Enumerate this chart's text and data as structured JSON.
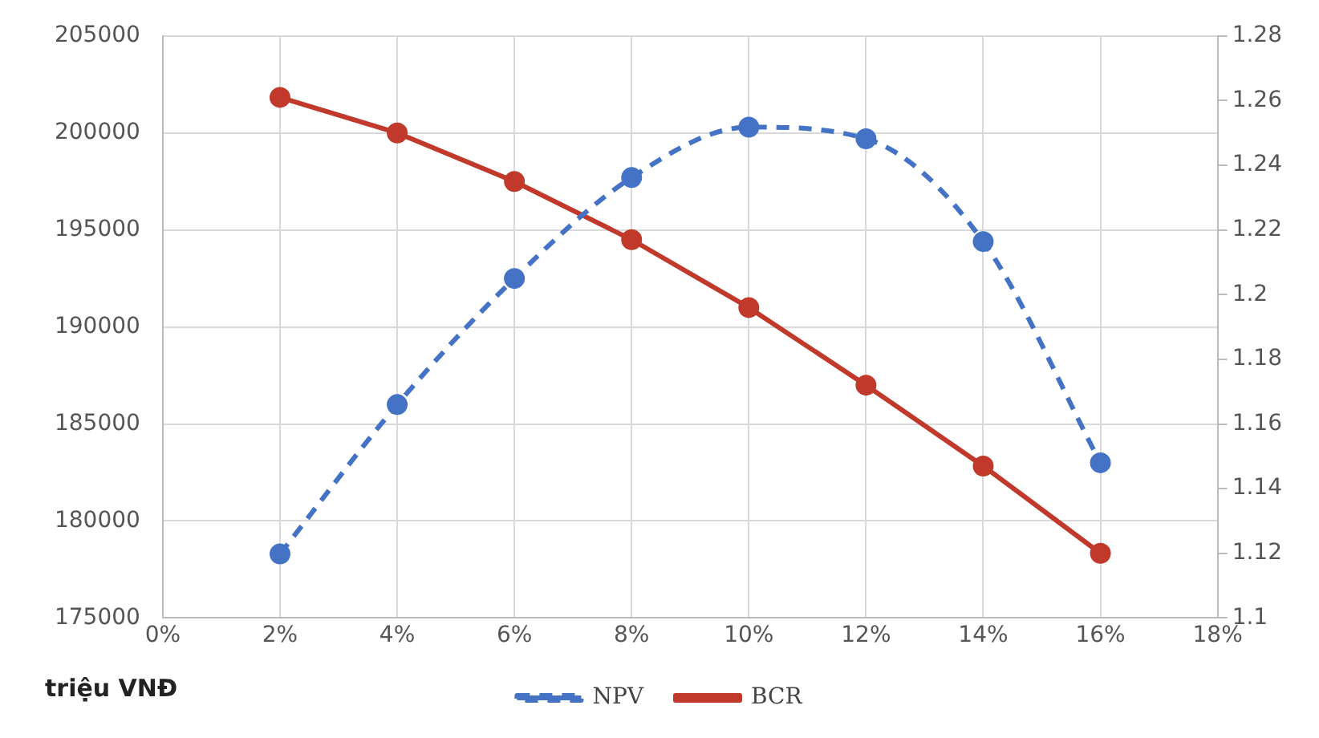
{
  "chart_data": {
    "type": "line",
    "ylabel": "triệu VNĐ",
    "x": [
      2,
      4,
      6,
      8,
      10,
      12,
      14,
      16
    ],
    "series": [
      {
        "name": "NPV",
        "color": "#4472c4",
        "values": [
          178300,
          186000,
          192500,
          197700,
          200300,
          199700,
          194400,
          183000
        ],
        "line_style": "dashed"
      },
      {
        "name": "BCR",
        "color": "#c0392b",
        "values": [
          1.261,
          1.25,
          1.235,
          1.217,
          1.196,
          1.172,
          1.147,
          1.12
        ],
        "axis": "y2",
        "line_style": "solid"
      }
    ],
    "xlim": [
      0,
      18
    ],
    "xticks": [
      {
        "value": 0,
        "label": "0%"
      },
      {
        "value": 2,
        "label": "2%"
      },
      {
        "value": 4,
        "label": "4%"
      },
      {
        "value": 6,
        "label": "6%"
      },
      {
        "value": 8,
        "label": "8%"
      },
      {
        "value": 10,
        "label": "10%"
      },
      {
        "value": 12,
        "label": "12%"
      },
      {
        "value": 14,
        "label": "14%"
      },
      {
        "value": 16,
        "label": "16%"
      },
      {
        "value": 18,
        "label": "18%"
      }
    ],
    "ylim": [
      175000,
      205000
    ],
    "yticks": [
      175000,
      180000,
      185000,
      190000,
      195000,
      200000,
      205000
    ],
    "y2lim": [
      1.1,
      1.28
    ],
    "y2ticks": [
      1.1,
      1.12,
      1.14,
      1.16,
      1.18,
      1.2,
      1.22,
      1.24,
      1.26,
      1.28
    ],
    "grid": true,
    "legend": "bottom",
    "marker": "circle"
  }
}
